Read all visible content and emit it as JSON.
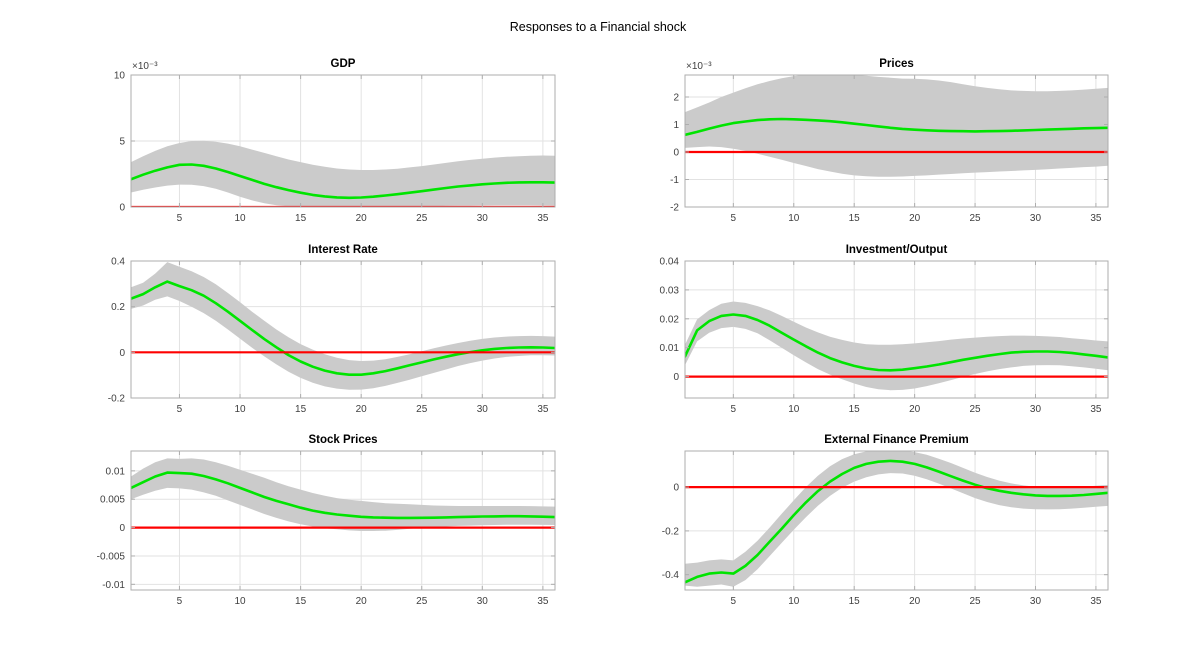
{
  "figure": {
    "title": "Responses to a Financial shock",
    "background": "#ffffff",
    "colors": {
      "median": "#00e400",
      "zero_line": "#fe0000",
      "band": "#cbcbcb",
      "grid": "#e2e2e2",
      "axis_box": "#aeaeae",
      "tick_label": "#3f3f3f",
      "title_color": "#000000"
    }
  },
  "chart_data": {
    "type": "line",
    "title": "Responses to a Financial shock",
    "description": "Impulse response functions with green median line, gray confidence band and red zero line",
    "grid": true,
    "legend": "none",
    "x_range": [
      1,
      36
    ],
    "xticks": [
      5,
      10,
      15,
      20,
      25,
      30,
      35
    ],
    "x": [
      1,
      2,
      3,
      4,
      5,
      6,
      7,
      8,
      9,
      10,
      11,
      12,
      13,
      14,
      15,
      16,
      17,
      18,
      19,
      20,
      21,
      22,
      23,
      24,
      25,
      26,
      27,
      28,
      29,
      30,
      31,
      32,
      33,
      34,
      35,
      36
    ],
    "subplots": [
      {
        "title": "GDP",
        "y_exponent_label": "×10⁻³",
        "unit_scale": "1e-3",
        "ylim": [
          0,
          10
        ],
        "yticks": [
          0,
          5,
          10
        ],
        "ytick_labels": [
          "0",
          "5",
          "10"
        ],
        "median": [
          2.1,
          2.45,
          2.75,
          3.0,
          3.2,
          3.22,
          3.12,
          2.92,
          2.65,
          2.35,
          2.05,
          1.75,
          1.5,
          1.28,
          1.08,
          0.92,
          0.8,
          0.73,
          0.7,
          0.72,
          0.78,
          0.87,
          0.97,
          1.08,
          1.2,
          1.32,
          1.44,
          1.55,
          1.64,
          1.72,
          1.78,
          1.83,
          1.86,
          1.87,
          1.87,
          1.85
        ],
        "upper": [
          3.4,
          3.85,
          4.25,
          4.6,
          4.85,
          5.0,
          5.02,
          4.95,
          4.8,
          4.6,
          4.35,
          4.1,
          3.85,
          3.6,
          3.4,
          3.2,
          3.05,
          2.92,
          2.84,
          2.8,
          2.8,
          2.84,
          2.9,
          3.0,
          3.1,
          3.22,
          3.34,
          3.46,
          3.57,
          3.66,
          3.74,
          3.8,
          3.85,
          3.88,
          3.9,
          3.88
        ],
        "lower": [
          1.1,
          1.3,
          1.48,
          1.62,
          1.7,
          1.68,
          1.58,
          1.38,
          1.1,
          0.78,
          0.5,
          0.28,
          0.14,
          0.06,
          0.02,
          0.0,
          0.0,
          0.0,
          0.0,
          0.0,
          0.0,
          0.01,
          0.02,
          0.03,
          0.05,
          0.06,
          0.08,
          0.09,
          0.1,
          0.11,
          0.12,
          0.12,
          0.12,
          0.12,
          0.11,
          0.1
        ]
      },
      {
        "title": "Prices",
        "y_exponent_label": "×10⁻³",
        "unit_scale": "1e-3",
        "ylim": [
          -2,
          2.8
        ],
        "yticks": [
          -2,
          -1,
          0,
          1,
          2
        ],
        "ytick_labels": [
          "-2",
          "-1",
          "0",
          "1",
          "2"
        ],
        "median": [
          0.62,
          0.73,
          0.85,
          0.96,
          1.05,
          1.11,
          1.16,
          1.19,
          1.2,
          1.19,
          1.17,
          1.15,
          1.12,
          1.08,
          1.03,
          0.98,
          0.93,
          0.88,
          0.84,
          0.81,
          0.79,
          0.77,
          0.76,
          0.755,
          0.75,
          0.755,
          0.76,
          0.77,
          0.785,
          0.8,
          0.815,
          0.83,
          0.845,
          0.86,
          0.87,
          0.88
        ],
        "upper": [
          1.45,
          1.62,
          1.8,
          2.0,
          2.16,
          2.32,
          2.46,
          2.58,
          2.68,
          2.76,
          2.82,
          2.85,
          2.85,
          2.83,
          2.8,
          2.77,
          2.73,
          2.7,
          2.67,
          2.66,
          2.64,
          2.6,
          2.54,
          2.46,
          2.39,
          2.33,
          2.28,
          2.24,
          2.22,
          2.21,
          2.21,
          2.22,
          2.24,
          2.27,
          2.3,
          2.33
        ],
        "lower": [
          0.15,
          0.18,
          0.2,
          0.18,
          0.12,
          0.04,
          -0.06,
          -0.17,
          -0.28,
          -0.4,
          -0.51,
          -0.62,
          -0.71,
          -0.79,
          -0.85,
          -0.88,
          -0.9,
          -0.9,
          -0.89,
          -0.87,
          -0.85,
          -0.82,
          -0.8,
          -0.77,
          -0.75,
          -0.73,
          -0.71,
          -0.69,
          -0.67,
          -0.65,
          -0.63,
          -0.6,
          -0.58,
          -0.55,
          -0.53,
          -0.5
        ]
      },
      {
        "title": "Interest Rate",
        "y_exponent_label": null,
        "unit_scale": "1",
        "ylim": [
          -0.2,
          0.4
        ],
        "yticks": [
          -0.2,
          0,
          0.2,
          0.4
        ],
        "ytick_labels": [
          "-0.2",
          "0",
          "0.2",
          "0.4"
        ],
        "median": [
          0.235,
          0.255,
          0.285,
          0.31,
          0.29,
          0.272,
          0.248,
          0.215,
          0.178,
          0.138,
          0.098,
          0.058,
          0.022,
          -0.012,
          -0.04,
          -0.063,
          -0.08,
          -0.092,
          -0.098,
          -0.098,
          -0.092,
          -0.082,
          -0.07,
          -0.057,
          -0.044,
          -0.031,
          -0.019,
          -0.008,
          0.001,
          0.009,
          0.015,
          0.019,
          0.021,
          0.022,
          0.021,
          0.019
        ],
        "upper": [
          0.285,
          0.305,
          0.345,
          0.395,
          0.375,
          0.355,
          0.33,
          0.298,
          0.26,
          0.22,
          0.178,
          0.138,
          0.1,
          0.066,
          0.036,
          0.012,
          -0.008,
          -0.024,
          -0.034,
          -0.038,
          -0.036,
          -0.03,
          -0.02,
          -0.008,
          0.005,
          0.018,
          0.03,
          0.041,
          0.051,
          0.059,
          0.065,
          0.069,
          0.071,
          0.072,
          0.071,
          0.069
        ],
        "lower": [
          0.19,
          0.205,
          0.23,
          0.245,
          0.225,
          0.2,
          0.172,
          0.138,
          0.1,
          0.06,
          0.02,
          -0.018,
          -0.053,
          -0.085,
          -0.112,
          -0.133,
          -0.149,
          -0.159,
          -0.164,
          -0.163,
          -0.157,
          -0.147,
          -0.134,
          -0.12,
          -0.105,
          -0.09,
          -0.075,
          -0.06,
          -0.047,
          -0.036,
          -0.027,
          -0.02,
          -0.016,
          -0.013,
          -0.013,
          -0.014
        ]
      },
      {
        "title": "Investment/Output",
        "y_exponent_label": null,
        "unit_scale": "1",
        "ylim": [
          -0.0074,
          0.04
        ],
        "yticks": [
          0,
          0.01,
          0.02,
          0.03,
          0.04
        ],
        "ytick_labels": [
          "0",
          "0.01",
          "0.02",
          "0.03",
          "0.04"
        ],
        "median": [
          0.007,
          0.016,
          0.0192,
          0.021,
          0.0215,
          0.021,
          0.0196,
          0.0176,
          0.0152,
          0.0128,
          0.0105,
          0.0083,
          0.0064,
          0.0049,
          0.0037,
          0.0028,
          0.0023,
          0.0022,
          0.0024,
          0.0029,
          0.0035,
          0.0042,
          0.005,
          0.0058,
          0.0065,
          0.0072,
          0.0078,
          0.0083,
          0.0086,
          0.0087,
          0.0087,
          0.0085,
          0.0082,
          0.0077,
          0.0072,
          0.0066
        ],
        "upper": [
          0.011,
          0.0198,
          0.023,
          0.0252,
          0.026,
          0.0255,
          0.0244,
          0.0229,
          0.021,
          0.019,
          0.017,
          0.0153,
          0.0138,
          0.0127,
          0.0118,
          0.0112,
          0.011,
          0.011,
          0.0112,
          0.0115,
          0.0119,
          0.0123,
          0.0128,
          0.0132,
          0.0135,
          0.0138,
          0.014,
          0.0142,
          0.0142,
          0.0141,
          0.0139,
          0.0137,
          0.0133,
          0.0129,
          0.0125,
          0.0122
        ],
        "lower": [
          0.004,
          0.0122,
          0.0152,
          0.0168,
          0.0172,
          0.0165,
          0.015,
          0.0126,
          0.01,
          0.0074,
          0.0049,
          0.0026,
          0.0007,
          -0.0009,
          -0.0024,
          -0.0036,
          -0.0044,
          -0.0047,
          -0.0046,
          -0.0041,
          -0.0033,
          -0.0023,
          -0.0012,
          -0.0001,
          0.0009,
          0.0018,
          0.0026,
          0.0032,
          0.0037,
          0.0039,
          0.004,
          0.0039,
          0.0036,
          0.0032,
          0.0027,
          0.0022
        ]
      },
      {
        "title": "Stock Prices",
        "y_exponent_label": null,
        "unit_scale": "1",
        "ylim": [
          -0.011,
          0.0135
        ],
        "yticks": [
          -0.01,
          -0.005,
          0,
          0.005,
          0.01
        ],
        "ytick_labels": [
          "-0.01",
          "-0.005",
          "0",
          "0.005",
          "0.01"
        ],
        "median": [
          0.007,
          0.008,
          0.009,
          0.0097,
          0.0096,
          0.0095,
          0.0091,
          0.0085,
          0.0078,
          0.007,
          0.0062,
          0.0054,
          0.0047,
          0.0041,
          0.0035,
          0.003,
          0.0026,
          0.0023,
          0.0021,
          0.0019,
          0.0018,
          0.00175,
          0.0017,
          0.0017,
          0.00172,
          0.00175,
          0.0018,
          0.00185,
          0.0019,
          0.00195,
          0.00198,
          0.002,
          0.002,
          0.00198,
          0.00192,
          0.00185
        ],
        "upper": [
          0.009,
          0.0104,
          0.0115,
          0.0122,
          0.0121,
          0.0122,
          0.012,
          0.0115,
          0.0109,
          0.0102,
          0.0095,
          0.0088,
          0.008,
          0.0073,
          0.0067,
          0.0061,
          0.0056,
          0.0052,
          0.0049,
          0.0047,
          0.0045,
          0.0043,
          0.0042,
          0.0041,
          0.004,
          0.0039,
          0.00385,
          0.0038,
          0.0038,
          0.0038,
          0.0038,
          0.0038,
          0.0038,
          0.00378,
          0.00374,
          0.0037
        ],
        "lower": [
          0.005,
          0.0058,
          0.0065,
          0.007,
          0.0069,
          0.0067,
          0.0062,
          0.0056,
          0.0048,
          0.004,
          0.0032,
          0.0024,
          0.0017,
          0.0011,
          0.0006,
          0.0002,
          -0.0001,
          -0.0003,
          -0.0005,
          -0.0006,
          -0.0006,
          -0.00055,
          -0.0004,
          -0.0002,
          -5e-05,
          0.0001,
          0.0002,
          0.0003,
          0.00035,
          0.0004,
          0.00045,
          0.0005,
          0.0005,
          0.0005,
          0.00048,
          0.00045
        ]
      },
      {
        "title": "External Finance Premium",
        "y_exponent_label": null,
        "unit_scale": "1",
        "ylim": [
          -0.47,
          0.165
        ],
        "yticks": [
          -0.4,
          -0.2,
          0
        ],
        "ytick_labels": [
          "-0.4",
          "-0.2",
          "0"
        ],
        "median": [
          -0.435,
          -0.41,
          -0.395,
          -0.39,
          -0.395,
          -0.36,
          -0.31,
          -0.25,
          -0.19,
          -0.128,
          -0.07,
          -0.018,
          0.025,
          0.06,
          0.088,
          0.106,
          0.116,
          0.12,
          0.116,
          0.106,
          0.09,
          0.071,
          0.05,
          0.03,
          0.011,
          -0.005,
          -0.017,
          -0.026,
          -0.033,
          -0.038,
          -0.04,
          -0.04,
          -0.039,
          -0.036,
          -0.031,
          -0.026
        ],
        "upper": [
          -0.35,
          -0.345,
          -0.335,
          -0.33,
          -0.335,
          -0.295,
          -0.245,
          -0.185,
          -0.122,
          -0.06,
          0.0,
          0.052,
          0.095,
          0.128,
          0.15,
          0.163,
          0.17,
          0.172,
          0.168,
          0.16,
          0.148,
          0.13,
          0.11,
          0.088,
          0.066,
          0.046,
          0.03,
          0.017,
          0.008,
          0.002,
          -0.001,
          -0.002,
          -0.001,
          0.002,
          0.006,
          0.01
        ],
        "lower": [
          -0.45,
          -0.455,
          -0.45,
          -0.445,
          -0.455,
          -0.425,
          -0.375,
          -0.315,
          -0.255,
          -0.195,
          -0.138,
          -0.085,
          -0.04,
          -0.003,
          0.025,
          0.045,
          0.058,
          0.064,
          0.062,
          0.052,
          0.036,
          0.016,
          -0.006,
          -0.028,
          -0.05,
          -0.068,
          -0.082,
          -0.092,
          -0.098,
          -0.101,
          -0.102,
          -0.101,
          -0.098,
          -0.094,
          -0.09,
          -0.086
        ]
      }
    ]
  }
}
